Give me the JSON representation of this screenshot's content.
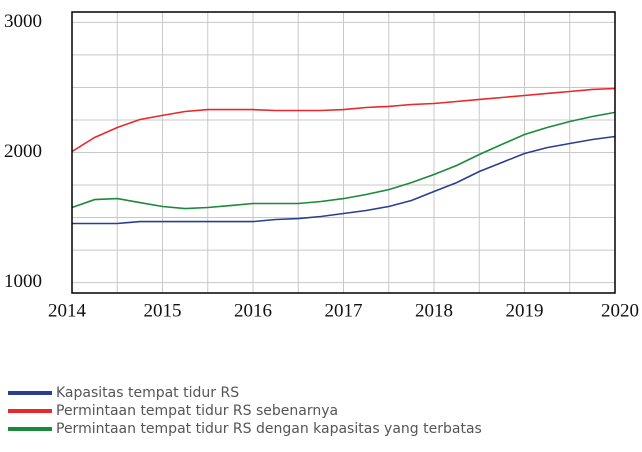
{
  "chart_data": {
    "type": "line",
    "x": [
      2014,
      2014.25,
      2014.5,
      2014.75,
      2015,
      2015.25,
      2015.5,
      2015.75,
      2016,
      2016.25,
      2016.5,
      2016.75,
      2017,
      2017.25,
      2017.5,
      2017.75,
      2018,
      2018.25,
      2018.5,
      2018.75,
      2019,
      2019.25,
      2019.5,
      2019.75,
      2020
    ],
    "series": [
      {
        "name": "Kapasitas tempat tidur RS",
        "color": "#2a3f8f",
        "values": [
          1454,
          1454,
          1454,
          1469,
          1469,
          1469,
          1469,
          1469,
          1469,
          1485,
          1492,
          1508,
          1531,
          1554,
          1585,
          1631,
          1700,
          1769,
          1854,
          1923,
          1992,
          2038,
          2069,
          2100,
          2123
        ]
      },
      {
        "name": "Permintaan tempat tidur RS sebenarnya",
        "color": "#e8282b",
        "values": [
          2008,
          2115,
          2192,
          2254,
          2285,
          2315,
          2330,
          2330,
          2330,
          2323,
          2323,
          2323,
          2330,
          2346,
          2354,
          2369,
          2377,
          2392,
          2408,
          2423,
          2438,
          2454,
          2469,
          2485,
          2492
        ]
      },
      {
        "name": "Permintaan tempat tidur RS dengan kapasitas yang terbatas",
        "color": "#1a8a3a",
        "values": [
          1577,
          1638,
          1646,
          1615,
          1585,
          1569,
          1577,
          1592,
          1608,
          1608,
          1608,
          1623,
          1646,
          1677,
          1715,
          1769,
          1831,
          1900,
          1985,
          2062,
          2138,
          2192,
          2238,
          2277,
          2308
        ]
      }
    ],
    "xlim": [
      2014,
      2020
    ],
    "xticks": [
      2014,
      2015,
      2016,
      2017,
      2018,
      2019,
      2020
    ],
    "minor_xticks": [
      2014.5,
      2015.5,
      2016.5,
      2017.5,
      2018.5,
      2019.5
    ],
    "ylim": [
      920,
      3080
    ],
    "yticks": [
      1000,
      2000,
      3000
    ],
    "minor_yticks": [
      1250,
      1500,
      1750,
      2250,
      2500,
      2750
    ],
    "grid": true,
    "legend": "bottom"
  }
}
